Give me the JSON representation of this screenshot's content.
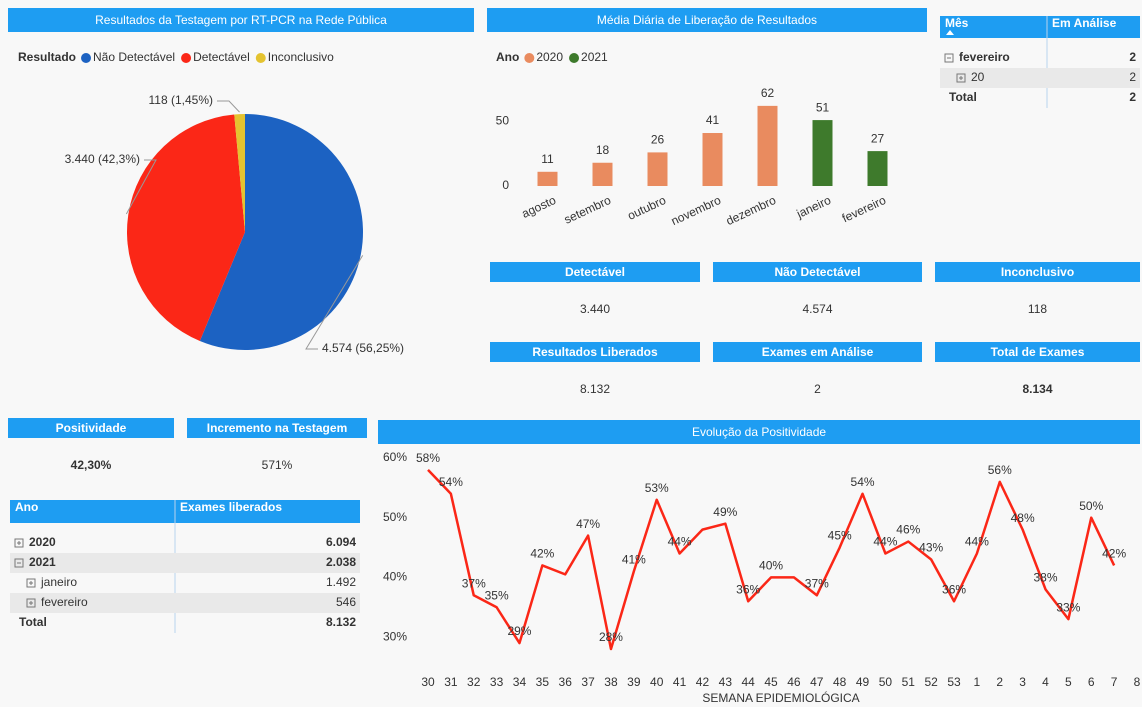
{
  "chart_data": [
    {
      "type": "pie",
      "title": "Resultados da Testagem por RT-PCR na Rede Pública",
      "legend_title": "Resultado",
      "categories": [
        "Não Detectável",
        "Detectável",
        "Inconclusivo"
      ],
      "values": [
        4574,
        3440,
        118
      ],
      "value_labels": [
        "4.574 (56,25%)",
        "3.440 (42,3%)",
        "118 (1,45%)"
      ],
      "colors": [
        "#1c62c2",
        "#fb2717",
        "#e4c330"
      ]
    },
    {
      "type": "bar",
      "title": "Média Diária de Liberação de Resultados",
      "legend_title": "Ano",
      "categories": [
        "agosto",
        "setembro",
        "outubro",
        "novembro",
        "dezembro",
        "janeiro",
        "fevereiro"
      ],
      "series": [
        {
          "name": "2020",
          "color": "#e98b5f",
          "values": [
            11,
            18,
            26,
            41,
            62,
            null,
            null
          ]
        },
        {
          "name": "2021",
          "color": "#3e7a2c",
          "values": [
            null,
            null,
            null,
            null,
            null,
            51,
            27
          ]
        }
      ],
      "ylim": [
        0,
        65
      ],
      "yticks": [
        0,
        50
      ]
    },
    {
      "type": "line",
      "title": "Evolução da Positividade",
      "x_label": "SEMANA EPIDEMIOLÓGICA",
      "categories": [
        "30",
        "31",
        "32",
        "33",
        "34",
        "35",
        "36",
        "37",
        "38",
        "39",
        "40",
        "41",
        "42",
        "43",
        "44",
        "45",
        "46",
        "47",
        "48",
        "49",
        "50",
        "51",
        "52",
        "53",
        "1",
        "2",
        "3",
        "4",
        "5",
        "6",
        "7",
        "8"
      ],
      "series": [
        {
          "name": "Positividade",
          "color": "#fb2717",
          "values": [
            58,
            54,
            37,
            35,
            29,
            42,
            40.5,
            47,
            28,
            41,
            53,
            44,
            48,
            49,
            36,
            40,
            40,
            37,
            45,
            54,
            44,
            46,
            43,
            36,
            44,
            56,
            48,
            38,
            33,
            50,
            42,
            null
          ],
          "value_labels": [
            "58%",
            "54%",
            "37%",
            "35%",
            "29%",
            "42%",
            null,
            "47%",
            "28%",
            "41%",
            "53%",
            "44%",
            null,
            "49%",
            "36%",
            "40%",
            null,
            "37%",
            "45%",
            "54%",
            "44%",
            "46%",
            "43%",
            "36%",
            "44%",
            "56%",
            "48%",
            "38%",
            "33%",
            "50%",
            "42%",
            null
          ]
        }
      ],
      "ylim": [
        27,
        61
      ],
      "yticks": [
        {
          "value": 30,
          "label": "30%"
        },
        {
          "value": 40,
          "label": "40%"
        },
        {
          "value": 50,
          "label": "50%"
        },
        {
          "value": 60,
          "label": "60%"
        }
      ]
    }
  ],
  "cards": [
    {
      "label": "Detectável",
      "value": "3.440"
    },
    {
      "label": "Não Detectável",
      "value": "4.574"
    },
    {
      "label": "Inconclusivo",
      "value": "118"
    },
    {
      "label": "Resultados Liberados",
      "value": "8.132"
    },
    {
      "label": "Exames em Análise",
      "value": "2"
    },
    {
      "label": "Total de Exames",
      "value": "8.134"
    },
    {
      "label": "Positividade",
      "value": "42,30%"
    },
    {
      "label": "Incremento na Testagem",
      "value": "571%"
    }
  ],
  "tables": [
    {
      "headers": [
        "Mês",
        "Em Análise"
      ],
      "rows": [
        [
          "fevereiro",
          "2"
        ],
        [
          "20",
          "2"
        ],
        [
          "Total",
          "2"
        ]
      ]
    },
    {
      "headers": [
        "Ano",
        "Exames liberados"
      ],
      "rows": [
        [
          "2020",
          "6.094"
        ],
        [
          "2021",
          "2.038"
        ],
        [
          "janeiro",
          "1.492"
        ],
        [
          "fevereiro",
          "546"
        ],
        [
          "Total",
          "8.132"
        ]
      ]
    }
  ]
}
